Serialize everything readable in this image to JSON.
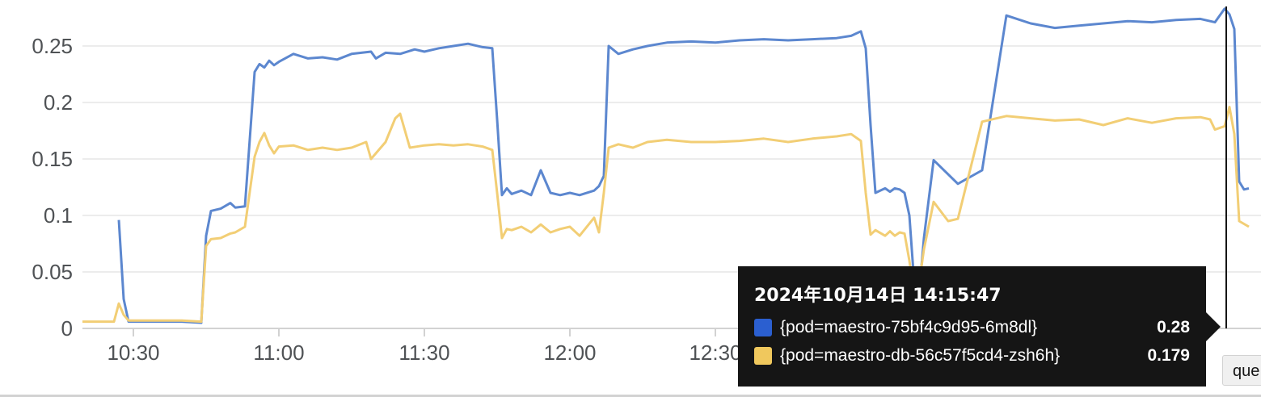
{
  "chart_data": {
    "type": "line",
    "xlim": [
      "10:19",
      "14:20"
    ],
    "ylim": [
      0,
      0.285
    ],
    "y_ticks": [
      "0",
      "0.05",
      "0.1",
      "0.15",
      "0.2",
      "0.25"
    ],
    "x_ticks": [
      "10:30",
      "11:00",
      "11:30",
      "12:00",
      "12:30"
    ],
    "grid": true,
    "series": [
      {
        "name": "{pod=maestro-75bf4c9d95-6m8dl}",
        "color": "#5c87cf",
        "x": [
          "10:27",
          "10:28",
          "10:29",
          "10:30",
          "10:32",
          "10:35",
          "10:40",
          "10:44",
          "10:45",
          "10:46",
          "10:48",
          "10:50",
          "10:51",
          "10:53",
          "10:55",
          "10:56",
          "10:57",
          "10:58",
          "10:59",
          "11:00",
          "11:03",
          "11:06",
          "11:09",
          "11:12",
          "11:15",
          "11:19",
          "11:20",
          "11:22",
          "11:25",
          "11:28",
          "11:30",
          "11:33",
          "11:36",
          "11:39",
          "11:42",
          "11:44",
          "11:45",
          "11:46",
          "11:47",
          "11:48",
          "11:50",
          "11:52",
          "11:54",
          "11:56",
          "11:58",
          "12:00",
          "12:02",
          "12:05",
          "12:06",
          "12:07",
          "12:08",
          "12:10",
          "12:13",
          "12:16",
          "12:20",
          "12:25",
          "12:30",
          "12:35",
          "12:40",
          "12:45",
          "12:50",
          "12:55",
          "12:58",
          "13:00",
          "13:01",
          "13:02",
          "13:03",
          "13:05",
          "13:06",
          "13:07",
          "13:08",
          "13:09",
          "13:10",
          "13:11",
          "13:12",
          "13:13",
          "13:15",
          "13:20",
          "13:25",
          "13:30",
          "13:35",
          "13:40",
          "13:45",
          "13:50",
          "13:55",
          "14:00",
          "14:05",
          "14:10",
          "14:12",
          "14:13",
          "14:15",
          "14:16",
          "14:17",
          "14:18",
          "14:19",
          "14:20"
        ],
        "values": [
          0.096,
          0.026,
          0.006,
          0.006,
          0.006,
          0.006,
          0.006,
          0.005,
          0.082,
          0.104,
          0.106,
          0.111,
          0.107,
          0.108,
          0.227,
          0.234,
          0.231,
          0.237,
          0.233,
          0.236,
          0.243,
          0.239,
          0.24,
          0.238,
          0.243,
          0.245,
          0.239,
          0.244,
          0.243,
          0.247,
          0.245,
          0.248,
          0.25,
          0.252,
          0.249,
          0.248,
          0.185,
          0.118,
          0.124,
          0.119,
          0.122,
          0.118,
          0.14,
          0.12,
          0.118,
          0.12,
          0.118,
          0.122,
          0.126,
          0.135,
          0.25,
          0.243,
          0.247,
          0.25,
          0.253,
          0.254,
          0.253,
          0.255,
          0.256,
          0.255,
          0.256,
          0.257,
          0.259,
          0.263,
          0.248,
          0.18,
          0.12,
          0.124,
          0.121,
          0.124,
          0.123,
          0.12,
          0.1,
          0.04,
          0.03,
          0.08,
          0.149,
          0.128,
          0.14,
          0.277,
          0.27,
          0.266,
          0.268,
          0.27,
          0.272,
          0.271,
          0.273,
          0.274,
          0.272,
          0.271,
          0.283,
          0.278,
          0.265,
          0.13,
          0.123,
          0.124
        ]
      },
      {
        "name": "{pod=maestro-db-56c57f5cd4-zsh6h}",
        "color": "#f2ce75",
        "x": [
          "10:19",
          "10:22",
          "10:26",
          "10:27",
          "10:28",
          "10:29",
          "10:30",
          "10:32",
          "10:35",
          "10:40",
          "10:44",
          "10:45",
          "10:46",
          "10:48",
          "10:50",
          "10:51",
          "10:53",
          "10:55",
          "10:56",
          "10:57",
          "10:58",
          "10:59",
          "11:00",
          "11:03",
          "11:06",
          "11:09",
          "11:12",
          "11:15",
          "11:18",
          "11:19",
          "11:22",
          "11:24",
          "11:25",
          "11:27",
          "11:30",
          "11:33",
          "11:36",
          "11:39",
          "11:42",
          "11:44",
          "11:45",
          "11:46",
          "11:47",
          "11:48",
          "11:50",
          "11:52",
          "11:54",
          "11:56",
          "11:58",
          "12:00",
          "12:02",
          "12:05",
          "12:06",
          "12:07",
          "12:08",
          "12:10",
          "12:13",
          "12:16",
          "12:20",
          "12:25",
          "12:30",
          "12:35",
          "12:40",
          "12:45",
          "12:50",
          "12:55",
          "12:58",
          "13:00",
          "13:01",
          "13:02",
          "13:03",
          "13:05",
          "13:06",
          "13:07",
          "13:08",
          "13:09",
          "13:10",
          "13:11",
          "13:12",
          "13:13",
          "13:15",
          "13:18",
          "13:20",
          "13:25",
          "13:30",
          "13:35",
          "13:40",
          "13:45",
          "13:50",
          "13:55",
          "14:00",
          "14:05",
          "14:10",
          "14:12",
          "14:13",
          "14:15",
          "14:16",
          "14:17",
          "14:18",
          "14:20"
        ],
        "values": [
          0.006,
          0.006,
          0.006,
          0.022,
          0.012,
          0.007,
          0.007,
          0.007,
          0.007,
          0.007,
          0.006,
          0.073,
          0.079,
          0.08,
          0.084,
          0.085,
          0.09,
          0.152,
          0.165,
          0.173,
          0.162,
          0.155,
          0.161,
          0.162,
          0.158,
          0.16,
          0.158,
          0.16,
          0.165,
          0.15,
          0.165,
          0.186,
          0.19,
          0.16,
          0.162,
          0.163,
          0.162,
          0.163,
          0.161,
          0.158,
          0.12,
          0.08,
          0.088,
          0.087,
          0.09,
          0.085,
          0.092,
          0.085,
          0.088,
          0.09,
          0.082,
          0.098,
          0.085,
          0.12,
          0.16,
          0.163,
          0.16,
          0.165,
          0.167,
          0.165,
          0.165,
          0.166,
          0.168,
          0.165,
          0.168,
          0.17,
          0.172,
          0.166,
          0.12,
          0.083,
          0.087,
          0.082,
          0.086,
          0.082,
          0.085,
          0.084,
          0.06,
          0.03,
          0.04,
          0.07,
          0.112,
          0.095,
          0.097,
          0.183,
          0.188,
          0.186,
          0.184,
          0.185,
          0.18,
          0.186,
          0.182,
          0.186,
          0.187,
          0.185,
          0.176,
          0.179,
          0.196,
          0.172,
          0.095,
          0.09
        ]
      }
    ],
    "cursor_x": "14:15"
  },
  "tooltip": {
    "title": "2024年10月14日 14:15:47",
    "rows": [
      {
        "label": "{pod=maestro-75bf4c9d95-6m8dl}",
        "value": "0.28",
        "color": "#2b5fd0"
      },
      {
        "label": "{pod=maestro-db-56c57f5cd4-zsh6h}",
        "value": "0.179",
        "color": "#f0c85d"
      }
    ]
  },
  "query_button": {
    "label": "que"
  }
}
